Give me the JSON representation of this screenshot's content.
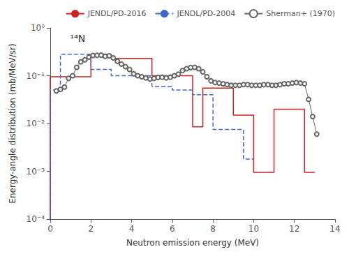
{
  "chart_data": {
    "type": "line",
    "annotation": "¹⁴N",
    "xlabel": "Neutron emission energy (MeV)",
    "ylabel": "Energy-angle distribution (mb/MeV/sr)",
    "log": "y",
    "xlim": [
      0,
      14
    ],
    "xticks": [
      0,
      2,
      4,
      6,
      8,
      10,
      12,
      14
    ],
    "ylim": [
      0.0001,
      1
    ],
    "yticks": [
      {
        "value": 0.0001,
        "label": "10⁻⁴"
      },
      {
        "value": 0.001,
        "label": "10⁻³"
      },
      {
        "value": 0.01,
        "label": "10⁻²"
      },
      {
        "value": 0.1,
        "label": "10⁻¹"
      },
      {
        "value": 1,
        "label": "10⁰"
      }
    ],
    "grid": false,
    "legend": "upper right",
    "series": [
      {
        "name": "JENDL/PD-2016",
        "type": "step",
        "color": "#cc2222",
        "line_style": "solid",
        "bins": [
          0.0,
          1.0,
          2.0,
          3.0,
          5.0,
          6.0,
          7.0,
          7.5,
          8.0,
          9.0,
          10.0,
          11.0,
          12.0,
          12.5,
          13.0
        ],
        "values": [
          0.095,
          0.095,
          0.28,
          0.23,
          0.1,
          0.1,
          0.0085,
          0.055,
          0.055,
          0.015,
          0.00095,
          0.02,
          0.02,
          0.00095
        ]
      },
      {
        "name": "JENDL/PD-2004",
        "type": "step",
        "color": "#4466cc",
        "line_style": "dashed",
        "bins": [
          0.0,
          0.5,
          1.5,
          2.0,
          3.0,
          5.0,
          6.0,
          7.0,
          7.5,
          8.0,
          9.0,
          9.5,
          10.0
        ],
        "values": [
          0.05,
          0.28,
          0.28,
          0.135,
          0.1,
          0.06,
          0.05,
          0.04,
          0.04,
          0.0075,
          0.0075,
          0.0018
        ]
      },
      {
        "name": "Sherman+ (1970)",
        "type": "line",
        "color": "#666666",
        "line_style": "solid",
        "marker": "circle",
        "x": [
          0.3,
          0.5,
          0.7,
          0.9,
          1.1,
          1.3,
          1.5,
          1.7,
          1.9,
          2.1,
          2.3,
          2.5,
          2.7,
          2.9,
          3.1,
          3.3,
          3.5,
          3.7,
          3.9,
          4.1,
          4.3,
          4.5,
          4.7,
          4.9,
          5.1,
          5.3,
          5.5,
          5.7,
          5.9,
          6.1,
          6.3,
          6.5,
          6.7,
          6.9,
          7.1,
          7.3,
          7.5,
          7.7,
          7.9,
          8.1,
          8.3,
          8.5,
          8.7,
          8.9,
          9.1,
          9.3,
          9.5,
          9.7,
          9.9,
          10.1,
          10.3,
          10.5,
          10.7,
          10.9,
          11.1,
          11.3,
          11.5,
          11.7,
          11.9,
          12.1,
          12.3,
          12.5,
          12.7,
          12.9,
          13.1
        ],
        "values": [
          0.048,
          0.052,
          0.058,
          0.088,
          0.1,
          0.15,
          0.195,
          0.215,
          0.245,
          0.265,
          0.268,
          0.27,
          0.255,
          0.26,
          0.235,
          0.2,
          0.175,
          0.155,
          0.135,
          0.11,
          0.1,
          0.095,
          0.09,
          0.085,
          0.088,
          0.092,
          0.093,
          0.09,
          0.093,
          0.1,
          0.108,
          0.128,
          0.14,
          0.148,
          0.15,
          0.14,
          0.12,
          0.095,
          0.078,
          0.072,
          0.07,
          0.068,
          0.065,
          0.063,
          0.063,
          0.063,
          0.065,
          0.065,
          0.063,
          0.063,
          0.063,
          0.065,
          0.065,
          0.063,
          0.063,
          0.065,
          0.068,
          0.068,
          0.07,
          0.072,
          0.07,
          0.068,
          0.032,
          0.014,
          0.006
        ]
      }
    ]
  }
}
